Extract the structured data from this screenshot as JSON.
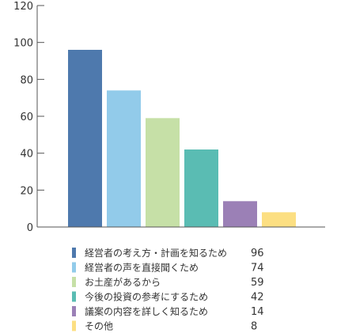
{
  "chart_data": {
    "type": "bar",
    "title": "",
    "xlabel": "",
    "ylabel": "",
    "ylim": [
      0,
      120
    ],
    "yticks": [
      0,
      20,
      40,
      60,
      80,
      100,
      120
    ],
    "grid": false,
    "legend_position": "bottom",
    "categories": [
      "経営者の考え方・計画を知るため",
      "経営者の声を直接聞くため",
      "お土産があるから",
      "今後の投資の参考にするため",
      "議案の内容を詳しく知るため",
      "その他"
    ],
    "values": [
      96,
      74,
      59,
      42,
      14,
      8
    ],
    "colors": [
      "#4e79ad",
      "#92cbea",
      "#c6e0a7",
      "#5abcb3",
      "#9b80b6",
      "#fcdf82"
    ]
  }
}
